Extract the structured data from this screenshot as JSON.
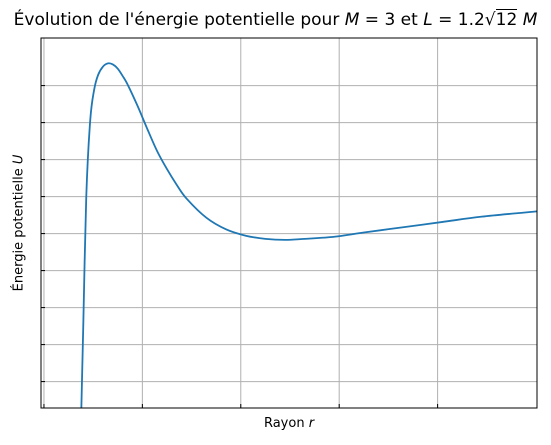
{
  "chart_data": {
    "type": "line",
    "title_prefix": "Évolution de l'énergie potentielle pour ",
    "title_math_M": "M",
    "title_eq1": " = 3 et ",
    "title_math_L": "L",
    "title_eq2": " = 1.2",
    "title_sqrt_arg": "12",
    "title_math_M2": "M",
    "xlabel_prefix": "Rayon ",
    "xlabel_var": "r",
    "ylabel_prefix": "Énergie potentielle ",
    "ylabel_var": "U",
    "M": 3,
    "L": 4.1569,
    "xlim": [
      5.2,
      55.6
    ],
    "ylim": [
      -0.01,
      0.025
    ],
    "x_ticks": [
      5.5,
      15.5,
      25.5,
      35.5,
      45.5
    ],
    "y_ticks": [
      -0.0075,
      -0.004,
      -0.0005,
      0.003,
      0.0065,
      0.01,
      0.0135,
      0.017,
      0.0205
    ],
    "grid": true,
    "x_tick_labels_shown": false,
    "y_tick_labels_shown": false,
    "series": [
      {
        "color": "#1f77b4",
        "x": [
          9.3,
          9.5,
          9.8,
          10.2,
          10.6,
          11.0,
          11.5,
          12.0,
          12.5,
          13.0,
          13.5,
          14.0,
          15.0,
          16.0,
          17.0,
          18.0,
          19.0,
          20.0,
          22.0,
          24.0,
          26.0,
          28.0,
          30.0,
          32.0,
          35.0,
          38.0,
          42.0,
          46.0,
          50.0,
          55.6
        ],
        "y": [
          -0.01,
          -0.002,
          0.01,
          0.0172,
          0.0201,
          0.0215,
          0.0223,
          0.0226,
          0.0225,
          0.0221,
          0.0214,
          0.0206,
          0.0186,
          0.0164,
          0.0143,
          0.0126,
          0.0111,
          0.0098,
          0.008,
          0.0069,
          0.0063,
          0.006,
          0.0059,
          0.006,
          0.0062,
          0.0066,
          0.0071,
          0.0076,
          0.0081,
          0.0086
        ]
      }
    ]
  }
}
